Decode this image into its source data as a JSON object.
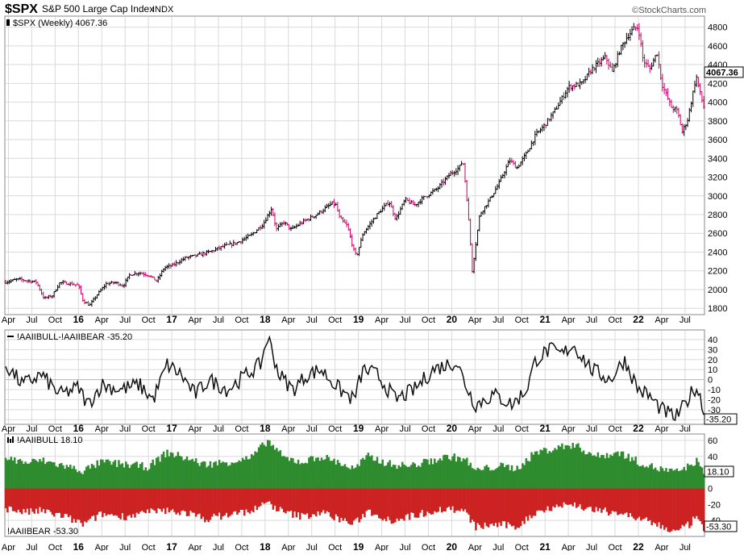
{
  "header": {
    "symbol": "$SPX",
    "name": "S&P 500 Large Cap Index",
    "exchange": "INDX",
    "watermark": "©StockCharts.com",
    "subtitle": "$SPX (Weekly) 4067.36"
  },
  "colors": {
    "up_bar": "#000000",
    "down_bar": "#cc0066",
    "bull": "#2e8b2e",
    "bear": "#cc2222",
    "grid": "#d9d9d9",
    "frame": "#888888"
  },
  "chart_data": [
    {
      "type": "ohlc",
      "label": "$SPX (Weekly) 4067.36",
      "last_value": "4067.36",
      "ylim": [
        1750,
        4900
      ],
      "y_ticks": [
        1800,
        2000,
        2200,
        2400,
        2600,
        2800,
        3000,
        3200,
        3400,
        3600,
        3800,
        4000,
        4200,
        4400,
        4600,
        4800
      ],
      "x_range": [
        2015.22,
        2022.7
      ],
      "grid": true,
      "points": [
        [
          2015.22,
          2080
        ],
        [
          2015.35,
          2110
        ],
        [
          2015.45,
          2095
        ],
        [
          2015.55,
          2080
        ],
        [
          2015.63,
          1905
        ],
        [
          2015.72,
          1935
        ],
        [
          2015.8,
          2075
        ],
        [
          2015.9,
          2065
        ],
        [
          2016.0,
          2045
        ],
        [
          2016.05,
          1880
        ],
        [
          2016.12,
          1830
        ],
        [
          2016.2,
          1945
        ],
        [
          2016.3,
          2065
        ],
        [
          2016.4,
          2075
        ],
        [
          2016.48,
          2040
        ],
        [
          2016.55,
          2160
        ],
        [
          2016.65,
          2180
        ],
        [
          2016.75,
          2155
        ],
        [
          2016.84,
          2090
        ],
        [
          2016.92,
          2235
        ],
        [
          2017.0,
          2255
        ],
        [
          2017.15,
          2340
        ],
        [
          2017.25,
          2360
        ],
        [
          2017.4,
          2400
        ],
        [
          2017.55,
          2460
        ],
        [
          2017.7,
          2500
        ],
        [
          2017.85,
          2580
        ],
        [
          2017.98,
          2700
        ],
        [
          2018.07,
          2870
        ],
        [
          2018.12,
          2640
        ],
        [
          2018.2,
          2720
        ],
        [
          2018.28,
          2640
        ],
        [
          2018.4,
          2720
        ],
        [
          2018.55,
          2800
        ],
        [
          2018.72,
          2920
        ],
        [
          2018.76,
          2900
        ],
        [
          2018.8,
          2760
        ],
        [
          2018.88,
          2680
        ],
        [
          2018.95,
          2420
        ],
        [
          2018.98,
          2350
        ],
        [
          2019.05,
          2600
        ],
        [
          2019.2,
          2800
        ],
        [
          2019.33,
          2940
        ],
        [
          2019.4,
          2750
        ],
        [
          2019.5,
          2960
        ],
        [
          2019.6,
          2900
        ],
        [
          2019.7,
          2980
        ],
        [
          2019.85,
          3080
        ],
        [
          2019.98,
          3230
        ],
        [
          2020.08,
          3300
        ],
        [
          2020.12,
          3380
        ],
        [
          2020.16,
          3000
        ],
        [
          2020.2,
          2500
        ],
        [
          2020.22,
          2200
        ],
        [
          2020.3,
          2800
        ],
        [
          2020.4,
          2950
        ],
        [
          2020.5,
          3120
        ],
        [
          2020.62,
          3380
        ],
        [
          2020.7,
          3300
        ],
        [
          2020.8,
          3450
        ],
        [
          2020.9,
          3650
        ],
        [
          2021.0,
          3760
        ],
        [
          2021.1,
          3900
        ],
        [
          2021.25,
          4160
        ],
        [
          2021.4,
          4200
        ],
        [
          2021.5,
          4350
        ],
        [
          2021.65,
          4480
        ],
        [
          2021.72,
          4320
        ],
        [
          2021.8,
          4550
        ],
        [
          2021.88,
          4700
        ],
        [
          2021.95,
          4780
        ],
        [
          2022.0,
          4800
        ],
        [
          2022.05,
          4450
        ],
        [
          2022.12,
          4350
        ],
        [
          2022.2,
          4530
        ],
        [
          2022.25,
          4200
        ],
        [
          2022.35,
          3950
        ],
        [
          2022.42,
          3900
        ],
        [
          2022.47,
          3680
        ],
        [
          2022.53,
          3820
        ],
        [
          2022.62,
          4280
        ],
        [
          2022.66,
          4100
        ],
        [
          2022.7,
          3950
        ]
      ]
    },
    {
      "type": "line",
      "label": "!AAIIBULL-!AAIIBEAR -35.20",
      "last_value": "-35.20",
      "ylim": [
        -43,
        48
      ],
      "y_ticks": [
        40,
        30,
        20,
        10,
        0,
        -10,
        -20,
        -30,
        -40
      ],
      "grid": true,
      "x_range": [
        2015.22,
        2022.7
      ],
      "anchors": [
        [
          2015.22,
          15
        ],
        [
          2015.4,
          -5
        ],
        [
          2015.6,
          5
        ],
        [
          2015.8,
          -15
        ],
        [
          2016.0,
          -8
        ],
        [
          2016.1,
          -25
        ],
        [
          2016.25,
          -5
        ],
        [
          2016.45,
          -10
        ],
        [
          2016.65,
          -5
        ],
        [
          2016.8,
          -20
        ],
        [
          2016.95,
          15
        ],
        [
          2017.1,
          5
        ],
        [
          2017.25,
          -15
        ],
        [
          2017.4,
          0
        ],
        [
          2017.6,
          -10
        ],
        [
          2017.8,
          5
        ],
        [
          2017.95,
          15
        ],
        [
          2018.03,
          43
        ],
        [
          2018.15,
          5
        ],
        [
          2018.3,
          -10
        ],
        [
          2018.45,
          5
        ],
        [
          2018.6,
          10
        ],
        [
          2018.8,
          -10
        ],
        [
          2018.95,
          -20
        ],
        [
          2019.05,
          10
        ],
        [
          2019.2,
          5
        ],
        [
          2019.4,
          -20
        ],
        [
          2019.6,
          -10
        ],
        [
          2019.8,
          10
        ],
        [
          2019.95,
          15
        ],
        [
          2020.05,
          18
        ],
        [
          2020.15,
          -5
        ],
        [
          2020.25,
          -25
        ],
        [
          2020.45,
          -15
        ],
        [
          2020.65,
          -25
        ],
        [
          2020.8,
          -10
        ],
        [
          2020.9,
          20
        ],
        [
          2021.05,
          30
        ],
        [
          2021.18,
          25
        ],
        [
          2021.3,
          35
        ],
        [
          2021.5,
          10
        ],
        [
          2021.7,
          0
        ],
        [
          2021.85,
          20
        ],
        [
          2022.0,
          -10
        ],
        [
          2022.1,
          -15
        ],
        [
          2022.25,
          -30
        ],
        [
          2022.4,
          -38
        ],
        [
          2022.5,
          -25
        ],
        [
          2022.6,
          -8
        ],
        [
          2022.65,
          -12
        ],
        [
          2022.7,
          -35
        ]
      ]
    },
    {
      "type": "bar",
      "label": "!AAIIBULL 18.10",
      "bear_label": "!AAIIBEAR -53.30",
      "bull_last_value": "18.10",
      "bear_last_value": "-53.30",
      "ylim": [
        -58,
        66
      ],
      "y_ticks": [
        60,
        40,
        20,
        0,
        -20,
        -40
      ],
      "grid": true,
      "x_range": [
        2015.22,
        2022.7
      ],
      "bull_anchors": [
        [
          2015.22,
          38
        ],
        [
          2015.45,
          32
        ],
        [
          2015.6,
          35
        ],
        [
          2015.85,
          28
        ],
        [
          2016.05,
          22
        ],
        [
          2016.25,
          33
        ],
        [
          2016.5,
          30
        ],
        [
          2016.75,
          27
        ],
        [
          2016.95,
          45
        ],
        [
          2017.15,
          38
        ],
        [
          2017.35,
          30
        ],
        [
          2017.6,
          33
        ],
        [
          2017.85,
          38
        ],
        [
          2018.03,
          60
        ],
        [
          2018.2,
          38
        ],
        [
          2018.4,
          33
        ],
        [
          2018.6,
          40
        ],
        [
          2018.8,
          32
        ],
        [
          2018.95,
          24
        ],
        [
          2019.1,
          40
        ],
        [
          2019.35,
          30
        ],
        [
          2019.55,
          28
        ],
        [
          2019.8,
          35
        ],
        [
          2019.98,
          40
        ],
        [
          2020.15,
          36
        ],
        [
          2020.25,
          22
        ],
        [
          2020.5,
          28
        ],
        [
          2020.7,
          25
        ],
        [
          2020.9,
          45
        ],
        [
          2021.1,
          50
        ],
        [
          2021.3,
          55
        ],
        [
          2021.55,
          40
        ],
        [
          2021.8,
          45
        ],
        [
          2022.0,
          33
        ],
        [
          2022.2,
          25
        ],
        [
          2022.4,
          20
        ],
        [
          2022.55,
          28
        ],
        [
          2022.62,
          35
        ],
        [
          2022.7,
          18
        ]
      ],
      "bear_anchors": [
        [
          2015.22,
          -25
        ],
        [
          2015.45,
          -30
        ],
        [
          2015.6,
          -28
        ],
        [
          2015.85,
          -35
        ],
        [
          2016.05,
          -45
        ],
        [
          2016.25,
          -32
        ],
        [
          2016.5,
          -35
        ],
        [
          2016.75,
          -30
        ],
        [
          2016.95,
          -28
        ],
        [
          2017.15,
          -30
        ],
        [
          2017.35,
          -38
        ],
        [
          2017.6,
          -33
        ],
        [
          2017.85,
          -28
        ],
        [
          2018.03,
          -18
        ],
        [
          2018.2,
          -30
        ],
        [
          2018.4,
          -35
        ],
        [
          2018.6,
          -30
        ],
        [
          2018.8,
          -38
        ],
        [
          2018.95,
          -45
        ],
        [
          2019.1,
          -28
        ],
        [
          2019.35,
          -40
        ],
        [
          2019.55,
          -35
        ],
        [
          2019.8,
          -28
        ],
        [
          2019.98,
          -25
        ],
        [
          2020.15,
          -30
        ],
        [
          2020.25,
          -48
        ],
        [
          2020.5,
          -45
        ],
        [
          2020.7,
          -48
        ],
        [
          2020.9,
          -30
        ],
        [
          2021.1,
          -22
        ],
        [
          2021.3,
          -20
        ],
        [
          2021.55,
          -28
        ],
        [
          2021.8,
          -30
        ],
        [
          2022.0,
          -38
        ],
        [
          2022.2,
          -45
        ],
        [
          2022.4,
          -55
        ],
        [
          2022.55,
          -45
        ],
        [
          2022.62,
          -35
        ],
        [
          2022.7,
          -53.3
        ]
      ]
    }
  ],
  "x_axis": {
    "labels": [
      {
        "t": 2015.25,
        "text": "Apr",
        "bold": false
      },
      {
        "t": 2015.5,
        "text": "Jul",
        "bold": false
      },
      {
        "t": 2015.75,
        "text": "Oct",
        "bold": false
      },
      {
        "t": 2016.0,
        "text": "16",
        "bold": true
      },
      {
        "t": 2016.25,
        "text": "Apr",
        "bold": false
      },
      {
        "t": 2016.5,
        "text": "Jul",
        "bold": false
      },
      {
        "t": 2016.75,
        "text": "Oct",
        "bold": false
      },
      {
        "t": 2017.0,
        "text": "17",
        "bold": true
      },
      {
        "t": 2017.25,
        "text": "Apr",
        "bold": false
      },
      {
        "t": 2017.5,
        "text": "Jul",
        "bold": false
      },
      {
        "t": 2017.75,
        "text": "Oct",
        "bold": false
      },
      {
        "t": 2018.0,
        "text": "18",
        "bold": true
      },
      {
        "t": 2018.25,
        "text": "Apr",
        "bold": false
      },
      {
        "t": 2018.5,
        "text": "Jul",
        "bold": false
      },
      {
        "t": 2018.75,
        "text": "Oct",
        "bold": false
      },
      {
        "t": 2019.0,
        "text": "19",
        "bold": true
      },
      {
        "t": 2019.25,
        "text": "Apr",
        "bold": false
      },
      {
        "t": 2019.5,
        "text": "Jul",
        "bold": false
      },
      {
        "t": 2019.75,
        "text": "Oct",
        "bold": false
      },
      {
        "t": 2020.0,
        "text": "20",
        "bold": true
      },
      {
        "t": 2020.25,
        "text": "Apr",
        "bold": false
      },
      {
        "t": 2020.5,
        "text": "Jul",
        "bold": false
      },
      {
        "t": 2020.75,
        "text": "Oct",
        "bold": false
      },
      {
        "t": 2021.0,
        "text": "21",
        "bold": true
      },
      {
        "t": 2021.25,
        "text": "Apr",
        "bold": false
      },
      {
        "t": 2021.5,
        "text": "Jul",
        "bold": false
      },
      {
        "t": 2021.75,
        "text": "Oct",
        "bold": false
      },
      {
        "t": 2022.0,
        "text": "22",
        "bold": true
      },
      {
        "t": 2022.25,
        "text": "Apr",
        "bold": false
      },
      {
        "t": 2022.5,
        "text": "Jul",
        "bold": false
      }
    ]
  }
}
